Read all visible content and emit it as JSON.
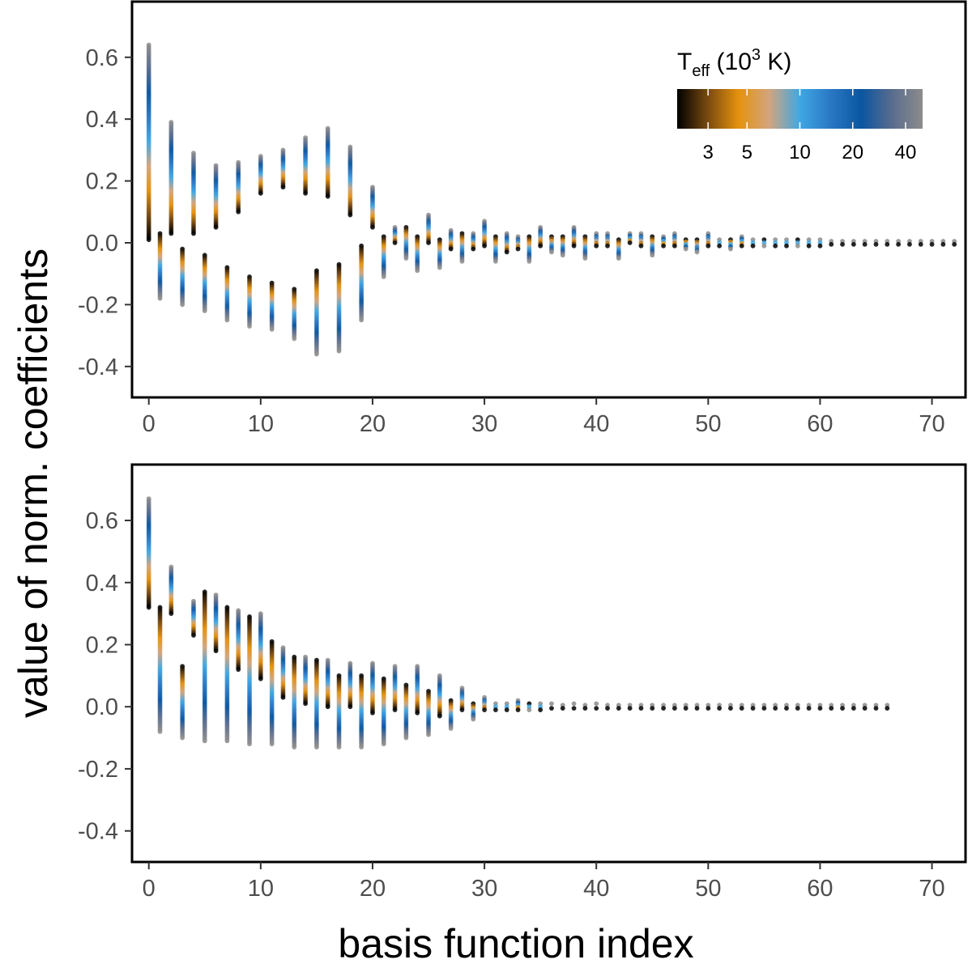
{
  "figure": {
    "ylabel": "value of norm. coefficients",
    "xlabel": "basis function index"
  },
  "colorbar": {
    "title_main": "T",
    "title_sub": "eff",
    "title_open": " (10",
    "title_sup": "3",
    "title_close": " K)",
    "tick_labels": [
      "3",
      "5",
      "10",
      "20",
      "40"
    ],
    "tick_values": [
      3,
      5,
      10,
      20,
      40
    ],
    "range": [
      2,
      50
    ],
    "colors": [
      "#000000",
      "#7a4a10",
      "#e5920e",
      "#d2a57e",
      "#40a7e3",
      "#2a78c4",
      "#0a56a0",
      "#596c8e",
      "#8c8c8c"
    ]
  },
  "chart_data": [
    {
      "type": "scatter",
      "panel": "top",
      "xlim": [
        -1.5,
        73
      ],
      "ylim": [
        -0.5,
        0.78
      ],
      "xticks": [
        0,
        10,
        20,
        30,
        40,
        50,
        60,
        70
      ],
      "xtick_labels": [
        "0",
        "10",
        "20",
        "30",
        "40",
        "50",
        "60",
        "70"
      ],
      "yticks": [
        -0.4,
        -0.2,
        0.0,
        0.2,
        0.4,
        0.6
      ],
      "ytick_labels": [
        "-0.4",
        "-0.2",
        "0.0",
        "0.2",
        "0.4",
        "0.6"
      ],
      "columns": [
        {
          "x": 0,
          "min": 0.01,
          "max": 0.64,
          "hot": "top"
        },
        {
          "x": 1,
          "min": -0.18,
          "max": 0.03,
          "hot": "bottom"
        },
        {
          "x": 2,
          "min": 0.03,
          "max": 0.39,
          "hot": "top"
        },
        {
          "x": 3,
          "min": -0.2,
          "max": -0.02,
          "hot": "bottom"
        },
        {
          "x": 4,
          "min": 0.03,
          "max": 0.29,
          "hot": "top"
        },
        {
          "x": 5,
          "min": -0.22,
          "max": -0.04,
          "hot": "bottom"
        },
        {
          "x": 6,
          "min": 0.05,
          "max": 0.25,
          "hot": "top"
        },
        {
          "x": 7,
          "min": -0.25,
          "max": -0.08,
          "hot": "bottom"
        },
        {
          "x": 8,
          "min": 0.1,
          "max": 0.26,
          "hot": "top"
        },
        {
          "x": 9,
          "min": -0.27,
          "max": -0.11,
          "hot": "bottom"
        },
        {
          "x": 10,
          "min": 0.16,
          "max": 0.28,
          "hot": "top"
        },
        {
          "x": 11,
          "min": -0.28,
          "max": -0.13,
          "hot": "bottom"
        },
        {
          "x": 12,
          "min": 0.18,
          "max": 0.3,
          "hot": "top"
        },
        {
          "x": 13,
          "min": -0.31,
          "max": -0.15,
          "hot": "bottom"
        },
        {
          "x": 14,
          "min": 0.16,
          "max": 0.34,
          "hot": "top"
        },
        {
          "x": 15,
          "min": -0.36,
          "max": -0.09,
          "hot": "bottom"
        },
        {
          "x": 16,
          "min": 0.15,
          "max": 0.37,
          "hot": "top"
        },
        {
          "x": 17,
          "min": -0.35,
          "max": -0.07,
          "hot": "bottom"
        },
        {
          "x": 18,
          "min": 0.09,
          "max": 0.31,
          "hot": "top"
        },
        {
          "x": 19,
          "min": -0.25,
          "max": -0.01,
          "hot": "bottom"
        },
        {
          "x": 20,
          "min": 0.05,
          "max": 0.18,
          "hot": "top"
        },
        {
          "x": 21,
          "min": -0.11,
          "max": 0.02,
          "hot": "bottom"
        },
        {
          "x": 22,
          "min": 0.0,
          "max": 0.05,
          "hot": "top"
        },
        {
          "x": 23,
          "min": -0.05,
          "max": 0.05,
          "hot": "bottom"
        },
        {
          "x": 24,
          "min": -0.09,
          "max": 0.02,
          "hot": "bottom"
        },
        {
          "x": 25,
          "min": 0.0,
          "max": 0.09,
          "hot": "top"
        },
        {
          "x": 26,
          "min": -0.08,
          "max": 0.01,
          "hot": "bottom"
        },
        {
          "x": 27,
          "min": -0.02,
          "max": 0.04,
          "hot": "top"
        },
        {
          "x": 28,
          "min": -0.06,
          "max": 0.03,
          "hot": "bottom"
        },
        {
          "x": 29,
          "min": -0.02,
          "max": 0.03,
          "hot": "top"
        },
        {
          "x": 30,
          "min": -0.01,
          "max": 0.07,
          "hot": "top"
        },
        {
          "x": 31,
          "min": -0.06,
          "max": 0.02,
          "hot": "bottom"
        },
        {
          "x": 32,
          "min": -0.03,
          "max": 0.03,
          "hot": "top"
        },
        {
          "x": 33,
          "min": -0.02,
          "max": 0.02,
          "hot": "top"
        },
        {
          "x": 34,
          "min": -0.06,
          "max": 0.02,
          "hot": "bottom"
        },
        {
          "x": 35,
          "min": -0.01,
          "max": 0.05,
          "hot": "top"
        },
        {
          "x": 36,
          "min": -0.03,
          "max": 0.02,
          "hot": "bottom"
        },
        {
          "x": 37,
          "min": -0.04,
          "max": 0.02,
          "hot": "bottom"
        },
        {
          "x": 38,
          "min": -0.01,
          "max": 0.05,
          "hot": "top"
        },
        {
          "x": 39,
          "min": -0.05,
          "max": 0.02,
          "hot": "bottom"
        },
        {
          "x": 40,
          "min": -0.01,
          "max": 0.03,
          "hot": "top"
        },
        {
          "x": 41,
          "min": -0.01,
          "max": 0.03,
          "hot": "top"
        },
        {
          "x": 42,
          "min": -0.05,
          "max": 0.01,
          "hot": "bottom"
        },
        {
          "x": 43,
          "min": 0.0,
          "max": 0.03,
          "hot": "top"
        },
        {
          "x": 44,
          "min": -0.01,
          "max": 0.03,
          "hot": "top"
        },
        {
          "x": 45,
          "min": -0.04,
          "max": 0.02,
          "hot": "bottom"
        },
        {
          "x": 46,
          "min": -0.01,
          "max": 0.02,
          "hot": "top"
        },
        {
          "x": 47,
          "min": -0.01,
          "max": 0.03,
          "hot": "top"
        },
        {
          "x": 48,
          "min": -0.02,
          "max": 0.01,
          "hot": "bottom"
        },
        {
          "x": 49,
          "min": -0.03,
          "max": 0.01,
          "hot": "bottom"
        },
        {
          "x": 50,
          "min": -0.01,
          "max": 0.03,
          "hot": "top"
        },
        {
          "x": 51,
          "min": -0.01,
          "max": 0.01,
          "hot": "top"
        },
        {
          "x": 52,
          "min": -0.02,
          "max": 0.01,
          "hot": "bottom"
        },
        {
          "x": 53,
          "min": -0.01,
          "max": 0.02,
          "hot": "top"
        },
        {
          "x": 54,
          "min": -0.01,
          "max": 0.01,
          "hot": "top"
        },
        {
          "x": 55,
          "min": -0.01,
          "max": 0.01,
          "hot": "bottom"
        },
        {
          "x": 56,
          "min": -0.01,
          "max": 0.01,
          "hot": "top"
        },
        {
          "x": 57,
          "min": -0.01,
          "max": 0.01,
          "hot": "top"
        },
        {
          "x": 58,
          "min": -0.01,
          "max": 0.01,
          "hot": "bottom"
        },
        {
          "x": 59,
          "min": -0.01,
          "max": 0.01,
          "hot": "top"
        },
        {
          "x": 60,
          "min": -0.01,
          "max": 0.01,
          "hot": "top"
        },
        {
          "x": 61,
          "min": -0.005,
          "max": 0.005,
          "hot": "top"
        },
        {
          "x": 62,
          "min": -0.005,
          "max": 0.005,
          "hot": "top"
        },
        {
          "x": 63,
          "min": -0.005,
          "max": 0.005,
          "hot": "top"
        },
        {
          "x": 64,
          "min": -0.005,
          "max": 0.005,
          "hot": "top"
        },
        {
          "x": 65,
          "min": -0.005,
          "max": 0.005,
          "hot": "top"
        },
        {
          "x": 66,
          "min": -0.005,
          "max": 0.005,
          "hot": "top"
        },
        {
          "x": 67,
          "min": -0.005,
          "max": 0.005,
          "hot": "top"
        },
        {
          "x": 68,
          "min": -0.005,
          "max": 0.005,
          "hot": "top"
        },
        {
          "x": 69,
          "min": -0.005,
          "max": 0.005,
          "hot": "top"
        },
        {
          "x": 70,
          "min": -0.005,
          "max": 0.005,
          "hot": "top"
        },
        {
          "x": 71,
          "min": -0.005,
          "max": 0.005,
          "hot": "top"
        },
        {
          "x": 72,
          "min": -0.005,
          "max": 0.005,
          "hot": "top"
        }
      ]
    },
    {
      "type": "scatter",
      "panel": "bottom",
      "xlim": [
        -1.5,
        73
      ],
      "ylim": [
        -0.5,
        0.78
      ],
      "xticks": [
        0,
        10,
        20,
        30,
        40,
        50,
        60,
        70
      ],
      "xtick_labels": [
        "0",
        "10",
        "20",
        "30",
        "40",
        "50",
        "60",
        "70"
      ],
      "yticks": [
        -0.4,
        -0.2,
        0.0,
        0.2,
        0.4,
        0.6
      ],
      "ytick_labels": [
        "-0.4",
        "-0.2",
        "0.0",
        "0.2",
        "0.4",
        "0.6"
      ],
      "columns": [
        {
          "x": 0,
          "min": 0.32,
          "max": 0.67,
          "hot": "top"
        },
        {
          "x": 1,
          "min": -0.08,
          "max": 0.32,
          "hot": "bottom"
        },
        {
          "x": 2,
          "min": 0.3,
          "max": 0.45,
          "hot": "top"
        },
        {
          "x": 3,
          "min": -0.1,
          "max": 0.13,
          "hot": "bottom"
        },
        {
          "x": 4,
          "min": 0.23,
          "max": 0.34,
          "hot": "top"
        },
        {
          "x": 5,
          "min": -0.11,
          "max": 0.37,
          "hot": "bottom"
        },
        {
          "x": 6,
          "min": 0.18,
          "max": 0.36,
          "hot": "top"
        },
        {
          "x": 7,
          "min": -0.11,
          "max": 0.32,
          "hot": "bottom"
        },
        {
          "x": 8,
          "min": 0.12,
          "max": 0.31,
          "hot": "top"
        },
        {
          "x": 9,
          "min": -0.12,
          "max": 0.29,
          "hot": "bottom"
        },
        {
          "x": 10,
          "min": 0.09,
          "max": 0.3,
          "hot": "top"
        },
        {
          "x": 11,
          "min": -0.12,
          "max": 0.21,
          "hot": "bottom"
        },
        {
          "x": 12,
          "min": 0.03,
          "max": 0.19,
          "hot": "top"
        },
        {
          "x": 13,
          "min": -0.13,
          "max": 0.16,
          "hot": "bottom"
        },
        {
          "x": 14,
          "min": 0.01,
          "max": 0.16,
          "hot": "top"
        },
        {
          "x": 15,
          "min": -0.13,
          "max": 0.15,
          "hot": "bottom"
        },
        {
          "x": 16,
          "min": 0.0,
          "max": 0.15,
          "hot": "top"
        },
        {
          "x": 17,
          "min": -0.13,
          "max": 0.1,
          "hot": "bottom"
        },
        {
          "x": 18,
          "min": 0.0,
          "max": 0.14,
          "hot": "top"
        },
        {
          "x": 19,
          "min": -0.13,
          "max": 0.1,
          "hot": "bottom"
        },
        {
          "x": 20,
          "min": -0.02,
          "max": 0.14,
          "hot": "top"
        },
        {
          "x": 21,
          "min": -0.12,
          "max": 0.09,
          "hot": "bottom"
        },
        {
          "x": 22,
          "min": -0.01,
          "max": 0.13,
          "hot": "top"
        },
        {
          "x": 23,
          "min": -0.1,
          "max": 0.07,
          "hot": "bottom"
        },
        {
          "x": 24,
          "min": -0.02,
          "max": 0.13,
          "hot": "top"
        },
        {
          "x": 25,
          "min": -0.09,
          "max": 0.05,
          "hot": "bottom"
        },
        {
          "x": 26,
          "min": -0.03,
          "max": 0.1,
          "hot": "top"
        },
        {
          "x": 27,
          "min": -0.07,
          "max": 0.02,
          "hot": "bottom"
        },
        {
          "x": 28,
          "min": -0.01,
          "max": 0.06,
          "hot": "top"
        },
        {
          "x": 29,
          "min": -0.04,
          "max": 0.01,
          "hot": "bottom"
        },
        {
          "x": 30,
          "min": -0.01,
          "max": 0.03,
          "hot": "top"
        },
        {
          "x": 31,
          "min": -0.01,
          "max": 0.01,
          "hot": "top"
        },
        {
          "x": 32,
          "min": -0.01,
          "max": 0.01,
          "hot": "top"
        },
        {
          "x": 33,
          "min": -0.01,
          "max": 0.02,
          "hot": "top"
        },
        {
          "x": 34,
          "min": -0.01,
          "max": 0.01,
          "hot": "bottom"
        },
        {
          "x": 35,
          "min": -0.01,
          "max": 0.01,
          "hot": "top"
        },
        {
          "x": 36,
          "min": -0.005,
          "max": 0.01,
          "hot": "top"
        },
        {
          "x": 37,
          "min": -0.005,
          "max": 0.005,
          "hot": "top"
        },
        {
          "x": 38,
          "min": -0.005,
          "max": 0.01,
          "hot": "top"
        },
        {
          "x": 39,
          "min": -0.005,
          "max": 0.005,
          "hot": "top"
        },
        {
          "x": 40,
          "min": -0.005,
          "max": 0.01,
          "hot": "top"
        },
        {
          "x": 41,
          "min": -0.005,
          "max": 0.005,
          "hot": "top"
        },
        {
          "x": 42,
          "min": -0.005,
          "max": 0.005,
          "hot": "top"
        },
        {
          "x": 43,
          "min": -0.005,
          "max": 0.005,
          "hot": "top"
        },
        {
          "x": 44,
          "min": -0.005,
          "max": 0.005,
          "hot": "top"
        },
        {
          "x": 45,
          "min": -0.005,
          "max": 0.005,
          "hot": "top"
        },
        {
          "x": 46,
          "min": -0.005,
          "max": 0.005,
          "hot": "top"
        },
        {
          "x": 47,
          "min": -0.005,
          "max": 0.005,
          "hot": "top"
        },
        {
          "x": 48,
          "min": -0.005,
          "max": 0.005,
          "hot": "top"
        },
        {
          "x": 49,
          "min": -0.005,
          "max": 0.005,
          "hot": "top"
        },
        {
          "x": 50,
          "min": -0.005,
          "max": 0.005,
          "hot": "top"
        },
        {
          "x": 51,
          "min": -0.005,
          "max": 0.005,
          "hot": "top"
        },
        {
          "x": 52,
          "min": -0.005,
          "max": 0.005,
          "hot": "top"
        },
        {
          "x": 53,
          "min": -0.005,
          "max": 0.005,
          "hot": "top"
        },
        {
          "x": 54,
          "min": -0.005,
          "max": 0.005,
          "hot": "top"
        },
        {
          "x": 55,
          "min": -0.005,
          "max": 0.005,
          "hot": "top"
        },
        {
          "x": 56,
          "min": -0.005,
          "max": 0.005,
          "hot": "top"
        },
        {
          "x": 57,
          "min": -0.005,
          "max": 0.005,
          "hot": "top"
        },
        {
          "x": 58,
          "min": -0.005,
          "max": 0.005,
          "hot": "top"
        },
        {
          "x": 59,
          "min": -0.005,
          "max": 0.005,
          "hot": "top"
        },
        {
          "x": 60,
          "min": -0.005,
          "max": 0.005,
          "hot": "top"
        },
        {
          "x": 61,
          "min": -0.005,
          "max": 0.005,
          "hot": "top"
        },
        {
          "x": 62,
          "min": -0.005,
          "max": 0.005,
          "hot": "top"
        },
        {
          "x": 63,
          "min": -0.005,
          "max": 0.005,
          "hot": "top"
        },
        {
          "x": 64,
          "min": -0.005,
          "max": 0.005,
          "hot": "top"
        },
        {
          "x": 65,
          "min": -0.005,
          "max": 0.005,
          "hot": "top"
        },
        {
          "x": 66,
          "min": -0.005,
          "max": 0.005,
          "hot": "top"
        }
      ]
    }
  ]
}
